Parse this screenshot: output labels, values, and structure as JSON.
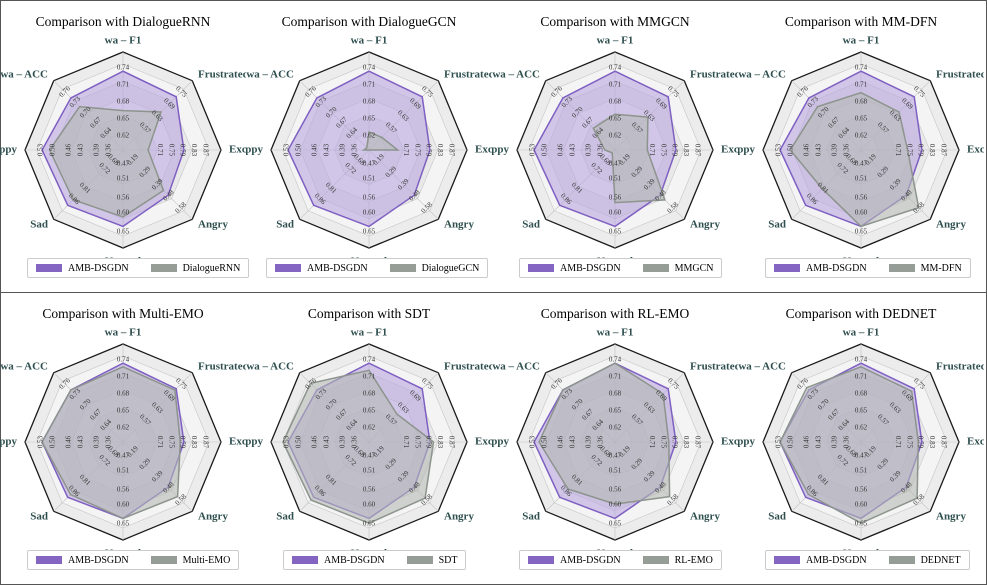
{
  "colors": {
    "primary_fill": "#b9a7de",
    "primary_line": "#7e5fc2",
    "baseline_fill": "#b4b9b4",
    "baseline_line": "#8c948d",
    "label_color": "#2f4f4f",
    "ring_fill": "#ececec"
  },
  "chart_data": {
    "type": "radar",
    "axes": [
      "wa – F1",
      "Frustrated",
      "Excited",
      "Angry",
      "Neutral",
      "Sad",
      "Happy",
      "wa – ACC"
    ],
    "axis_ranges": [
      [
        0.62,
        0.74
      ],
      [
        0.51,
        0.75
      ],
      [
        0.63,
        0.87
      ],
      [
        0.19,
        0.58
      ],
      [
        0.47,
        0.65
      ],
      [
        0.68,
        0.9
      ],
      [
        0.36,
        0.53
      ],
      [
        0.62,
        0.76
      ]
    ],
    "tick_labels": [
      [
        "0.62",
        "0.65",
        "0.68",
        "0.71",
        "0.74"
      ],
      [
        "0.57",
        "0.63",
        "0.69",
        "0.75"
      ],
      [
        "0.71",
        "0.75",
        "0.79",
        "0.83",
        "0.87"
      ],
      [
        "0.19",
        "0.29",
        "0.39",
        "0.48",
        "0.58"
      ],
      [
        "0.47",
        "0.51",
        "0.56",
        "0.60",
        "0.65"
      ],
      [
        "0.68",
        "0.72",
        "0.81",
        "0.86"
      ],
      [
        "0.36",
        "0.39",
        "0.43",
        "0.46",
        "0.50",
        "0.53"
      ],
      [
        "0.64",
        "0.67",
        "0.70",
        "0.73",
        "0.76"
      ]
    ],
    "primary_series": {
      "name": "AMB-DSGDN",
      "values": [
        0.73,
        0.72,
        0.8,
        0.48,
        0.63,
        0.88,
        0.52,
        0.74
      ]
    },
    "panels": [
      {
        "title": "Comparison with DialogueRNN",
        "legend_primary": "AMB-DSGDN",
        "baseline": {
          "name": "DialogueRNN",
          "values": [
            0.675,
            0.66,
            0.7,
            0.45,
            0.61,
            0.86,
            0.505,
            0.72
          ]
        }
      },
      {
        "title": "Comparison with DialogueGCN",
        "legend_primary": "AMB-DSGDN",
        "baseline": {
          "name": "DialogueGCN",
          "values": [
            0.645,
            0.56,
            0.71,
            0.19,
            0.47,
            0.68,
            0.37,
            0.625
          ]
        }
      },
      {
        "title": "Comparison with MMGCN",
        "legend_primary": "AMB-DSGDN",
        "baseline": {
          "name": "MMGCN",
          "values": [
            0.67,
            0.64,
            0.72,
            0.51,
            0.58,
            0.69,
            0.38,
            0.67
          ]
        }
      },
      {
        "title": "Comparison with MM-DFN",
        "legend_primary": "AMB-DSGDN",
        "baseline": {
          "name": "MM-DFN",
          "values": [
            0.7,
            0.66,
            0.76,
            0.56,
            0.63,
            0.82,
            0.5,
            0.72
          ]
        }
      },
      {
        "title": "Comparison with Multi-EMO",
        "legend_primary": "AMB-DSGDN",
        "baseline": {
          "name": "Multi-EMO",
          "values": [
            0.725,
            0.715,
            0.79,
            0.54,
            0.63,
            0.87,
            0.52,
            0.74
          ]
        }
      },
      {
        "title": "Comparison with SDT",
        "legend_primary": "AMB-DSGDN",
        "baseline": {
          "name": "SDT",
          "values": [
            0.72,
            0.62,
            0.81,
            0.55,
            0.64,
            0.89,
            0.53,
            0.755
          ]
        }
      },
      {
        "title": "Comparison with RL-EMO",
        "legend_primary": "AMB-DSGDN",
        "baseline": {
          "name": "RL-EMO",
          "values": [
            0.73,
            0.7,
            0.78,
            0.54,
            0.6,
            0.85,
            0.51,
            0.74
          ]
        }
      },
      {
        "title": "Comparison with DEDNET",
        "legend_primary": "AMB-DSGDN",
        "baseline": {
          "name": "DEDNET",
          "values": [
            0.725,
            0.71,
            0.79,
            0.55,
            0.64,
            0.87,
            0.52,
            0.745
          ]
        }
      }
    ]
  }
}
